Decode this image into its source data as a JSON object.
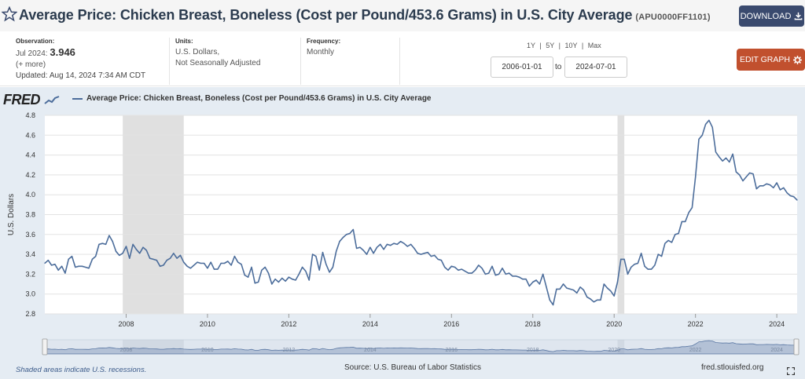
{
  "header": {
    "title": "Average Price: Chicken Breast, Boneless (Cost per Pound/453.6 Grams) in U.S. City Average",
    "series_id": "(APU0000FF1101)",
    "download_label": "DOWNLOAD",
    "download_icon": "download-icon",
    "star_icon": "star-icon"
  },
  "meta": {
    "observation_label": "Observation:",
    "observation_date": "Jul 2024:",
    "observation_value": "3.946",
    "more_link": "(+ more)",
    "updated": "Updated: Aug 14, 2024 7:34 AM CDT",
    "units_label": "Units:",
    "units_line1": "U.S. Dollars,",
    "units_line2": "Not Seasonally Adjusted",
    "frequency_label": "Frequency:",
    "frequency_value": "Monthly"
  },
  "controls": {
    "range_1y": "1Y",
    "range_5y": "5Y",
    "range_10y": "10Y",
    "range_max": "Max",
    "separator": "|",
    "start_date": "2006-01-01",
    "to_label": "to",
    "end_date": "2024-07-01",
    "edit_label": "EDIT GRAPH",
    "edit_icon": "gear-icon"
  },
  "footer": {
    "recession_note": "Shaded areas indicate U.S. recessions.",
    "source": "Source: U.S. Bureau of Labor Statistics",
    "site": "fred.stlouisfed.org",
    "expand_icon": "fullscreen-icon"
  },
  "colors": {
    "series_line": "#4c6d9b",
    "recession_shade": "#e0e0e0",
    "chart_background": "#e5ecf3",
    "download_button": "#3a4a6e",
    "edit_button": "#c1502e"
  },
  "chart_data": {
    "type": "line",
    "logo": "FRED",
    "title": "Average Price: Chicken Breast, Boneless (Cost per Pound/453.6 Grams) in U.S. City Average",
    "legend_label": "Average Price: Chicken Breast, Boneless (Cost per Pound/453.6 Grams) in U.S. City Average",
    "legend_placement": "top-left",
    "ylabel": "U.S. Dollars",
    "xlabel": "",
    "ylim": [
      2.8,
      4.8
    ],
    "yticks": [
      "2.8",
      "3.0",
      "3.2",
      "3.4",
      "3.6",
      "3.8",
      "4.0",
      "4.2",
      "4.4",
      "4.6",
      "4.8"
    ],
    "xlim": [
      2006.0,
      2024.5
    ],
    "xticks": [
      {
        "value": 2008,
        "label": "2008"
      },
      {
        "value": 2010,
        "label": "2010"
      },
      {
        "value": 2012,
        "label": "2012"
      },
      {
        "value": 2014,
        "label": "2014"
      },
      {
        "value": 2016,
        "label": "2016"
      },
      {
        "value": 2018,
        "label": "2018"
      },
      {
        "value": 2020,
        "label": "2020"
      },
      {
        "value": 2022,
        "label": "2022"
      },
      {
        "value": 2024,
        "label": "2024"
      }
    ],
    "grid": true,
    "recessions": [
      {
        "start": "2007-12",
        "end": "2009-06"
      },
      {
        "start": "2020-02",
        "end": "2020-04"
      }
    ],
    "series": [
      {
        "name": "APU0000FF1101",
        "points": [
          [
            "2006-01",
            3.31
          ],
          [
            "2006-02",
            3.34
          ],
          [
            "2006-03",
            3.29
          ],
          [
            "2006-04",
            3.3
          ],
          [
            "2006-05",
            3.24
          ],
          [
            "2006-06",
            3.28
          ],
          [
            "2006-07",
            3.21
          ],
          [
            "2006-08",
            3.35
          ],
          [
            "2006-09",
            3.38
          ],
          [
            "2006-10",
            3.27
          ],
          [
            "2006-11",
            3.28
          ],
          [
            "2006-12",
            3.28
          ],
          [
            "2007-01",
            3.27
          ],
          [
            "2007-02",
            3.26
          ],
          [
            "2007-03",
            3.35
          ],
          [
            "2007-04",
            3.38
          ],
          [
            "2007-05",
            3.5
          ],
          [
            "2007-06",
            3.51
          ],
          [
            "2007-07",
            3.5
          ],
          [
            "2007-08",
            3.59
          ],
          [
            "2007-09",
            3.53
          ],
          [
            "2007-10",
            3.43
          ],
          [
            "2007-11",
            3.39
          ],
          [
            "2007-12",
            3.41
          ],
          [
            "2008-01",
            3.48
          ],
          [
            "2008-02",
            3.36
          ],
          [
            "2008-03",
            3.5
          ],
          [
            "2008-04",
            3.45
          ],
          [
            "2008-05",
            3.41
          ],
          [
            "2008-06",
            3.47
          ],
          [
            "2008-07",
            3.44
          ],
          [
            "2008-08",
            3.36
          ],
          [
            "2008-09",
            3.35
          ],
          [
            "2008-10",
            3.34
          ],
          [
            "2008-11",
            3.28
          ],
          [
            "2008-12",
            3.29
          ],
          [
            "2009-01",
            3.34
          ],
          [
            "2009-02",
            3.36
          ],
          [
            "2009-03",
            3.41
          ],
          [
            "2009-04",
            3.36
          ],
          [
            "2009-05",
            3.39
          ],
          [
            "2009-06",
            3.32
          ],
          [
            "2009-07",
            3.28
          ],
          [
            "2009-08",
            3.26
          ],
          [
            "2009-09",
            3.29
          ],
          [
            "2009-10",
            3.32
          ],
          [
            "2009-11",
            3.31
          ],
          [
            "2009-12",
            3.31
          ],
          [
            "2010-01",
            3.26
          ],
          [
            "2010-02",
            3.32
          ],
          [
            "2010-03",
            3.25
          ],
          [
            "2010-04",
            3.25
          ],
          [
            "2010-05",
            3.31
          ],
          [
            "2010-06",
            3.31
          ],
          [
            "2010-07",
            3.33
          ],
          [
            "2010-08",
            3.29
          ],
          [
            "2010-09",
            3.38
          ],
          [
            "2010-10",
            3.32
          ],
          [
            "2010-11",
            3.3
          ],
          [
            "2010-12",
            3.19
          ],
          [
            "2011-01",
            3.17
          ],
          [
            "2011-02",
            3.27
          ],
          [
            "2011-03",
            3.11
          ],
          [
            "2011-04",
            3.12
          ],
          [
            "2011-05",
            3.24
          ],
          [
            "2011-06",
            3.27
          ],
          [
            "2011-07",
            3.21
          ],
          [
            "2011-08",
            3.1
          ],
          [
            "2011-09",
            3.15
          ],
          [
            "2011-10",
            3.12
          ],
          [
            "2011-11",
            3.16
          ],
          [
            "2011-12",
            3.13
          ],
          [
            "2012-01",
            3.17
          ],
          [
            "2012-02",
            3.15
          ],
          [
            "2012-03",
            3.14
          ],
          [
            "2012-04",
            3.2
          ],
          [
            "2012-05",
            3.27
          ],
          [
            "2012-06",
            3.23
          ],
          [
            "2012-07",
            3.14
          ],
          [
            "2012-08",
            3.4
          ],
          [
            "2012-09",
            3.38
          ],
          [
            "2012-10",
            3.24
          ],
          [
            "2012-11",
            3.42
          ],
          [
            "2012-12",
            3.3
          ],
          [
            "2013-01",
            3.22
          ],
          [
            "2013-02",
            3.27
          ],
          [
            "2013-03",
            3.43
          ],
          [
            "2013-04",
            3.53
          ],
          [
            "2013-05",
            3.57
          ],
          [
            "2013-06",
            3.6
          ],
          [
            "2013-07",
            3.61
          ],
          [
            "2013-08",
            3.65
          ],
          [
            "2013-09",
            3.46
          ],
          [
            "2013-10",
            3.47
          ],
          [
            "2013-11",
            3.44
          ],
          [
            "2013-12",
            3.4
          ],
          [
            "2014-01",
            3.47
          ],
          [
            "2014-02",
            3.41
          ],
          [
            "2014-03",
            3.47
          ],
          [
            "2014-04",
            3.5
          ],
          [
            "2014-05",
            3.45
          ],
          [
            "2014-06",
            3.5
          ],
          [
            "2014-07",
            3.49
          ],
          [
            "2014-08",
            3.51
          ],
          [
            "2014-09",
            3.5
          ],
          [
            "2014-10",
            3.53
          ],
          [
            "2014-11",
            3.51
          ],
          [
            "2014-12",
            3.48
          ],
          [
            "2015-01",
            3.5
          ],
          [
            "2015-02",
            3.46
          ],
          [
            "2015-03",
            3.41
          ],
          [
            "2015-04",
            3.4
          ],
          [
            "2015-05",
            3.41
          ],
          [
            "2015-06",
            3.42
          ],
          [
            "2015-07",
            3.38
          ],
          [
            "2015-08",
            3.39
          ],
          [
            "2015-09",
            3.35
          ],
          [
            "2015-10",
            3.34
          ],
          [
            "2015-11",
            3.27
          ],
          [
            "2015-12",
            3.24
          ],
          [
            "2016-01",
            3.28
          ],
          [
            "2016-02",
            3.27
          ],
          [
            "2016-03",
            3.24
          ],
          [
            "2016-04",
            3.25
          ],
          [
            "2016-05",
            3.23
          ],
          [
            "2016-06",
            3.21
          ],
          [
            "2016-07",
            3.21
          ],
          [
            "2016-08",
            3.24
          ],
          [
            "2016-09",
            3.29
          ],
          [
            "2016-10",
            3.26
          ],
          [
            "2016-11",
            3.2
          ],
          [
            "2016-12",
            3.21
          ],
          [
            "2017-01",
            3.28
          ],
          [
            "2017-02",
            3.19
          ],
          [
            "2017-03",
            3.2
          ],
          [
            "2017-04",
            3.26
          ],
          [
            "2017-05",
            3.2
          ],
          [
            "2017-06",
            3.21
          ],
          [
            "2017-07",
            3.18
          ],
          [
            "2017-08",
            3.18
          ],
          [
            "2017-09",
            3.17
          ],
          [
            "2017-10",
            3.15
          ],
          [
            "2017-11",
            3.15
          ],
          [
            "2017-12",
            3.08
          ],
          [
            "2018-01",
            3.12
          ],
          [
            "2018-02",
            3.14
          ],
          [
            "2018-03",
            3.1
          ],
          [
            "2018-04",
            3.2
          ],
          [
            "2018-05",
            3.07
          ],
          [
            "2018-06",
            2.94
          ],
          [
            "2018-07",
            2.89
          ],
          [
            "2018-08",
            3.05
          ],
          [
            "2018-09",
            3.05
          ],
          [
            "2018-10",
            3.1
          ],
          [
            "2018-11",
            3.06
          ],
          [
            "2018-12",
            3.05
          ],
          [
            "2019-01",
            3.04
          ],
          [
            "2019-02",
            3.01
          ],
          [
            "2019-03",
            3.07
          ],
          [
            "2019-04",
            3.04
          ],
          [
            "2019-05",
            2.97
          ],
          [
            "2019-06",
            2.95
          ],
          [
            "2019-07",
            2.92
          ],
          [
            "2019-08",
            2.94
          ],
          [
            "2019-09",
            2.94
          ],
          [
            "2019-10",
            3.1
          ],
          [
            "2019-11",
            3.06
          ],
          [
            "2019-12",
            3.03
          ],
          [
            "2020-01",
            2.98
          ],
          [
            "2020-02",
            3.12
          ],
          [
            "2020-03",
            3.35
          ],
          [
            "2020-04",
            3.35
          ],
          [
            "2020-05",
            3.2
          ],
          [
            "2020-06",
            3.27
          ],
          [
            "2020-07",
            3.3
          ],
          [
            "2020-08",
            3.31
          ],
          [
            "2020-09",
            3.41
          ],
          [
            "2020-10",
            3.28
          ],
          [
            "2020-11",
            3.25
          ],
          [
            "2020-12",
            3.25
          ],
          [
            "2021-01",
            3.29
          ],
          [
            "2021-02",
            3.4
          ],
          [
            "2021-03",
            3.38
          ],
          [
            "2021-04",
            3.51
          ],
          [
            "2021-05",
            3.54
          ],
          [
            "2021-06",
            3.52
          ],
          [
            "2021-07",
            3.6
          ],
          [
            "2021-08",
            3.61
          ],
          [
            "2021-09",
            3.73
          ],
          [
            "2021-10",
            3.73
          ],
          [
            "2021-11",
            3.82
          ],
          [
            "2021-12",
            3.87
          ],
          [
            "2022-01",
            4.18
          ],
          [
            "2022-02",
            4.56
          ],
          [
            "2022-03",
            4.6
          ],
          [
            "2022-04",
            4.71
          ],
          [
            "2022-05",
            4.75
          ],
          [
            "2022-06",
            4.68
          ],
          [
            "2022-07",
            4.43
          ],
          [
            "2022-08",
            4.38
          ],
          [
            "2022-09",
            4.34
          ],
          [
            "2022-10",
            4.37
          ],
          [
            "2022-11",
            4.33
          ],
          [
            "2022-12",
            4.41
          ],
          [
            "2023-01",
            4.23
          ],
          [
            "2023-02",
            4.2
          ],
          [
            "2023-03",
            4.14
          ],
          [
            "2023-04",
            4.18
          ],
          [
            "2023-05",
            4.22
          ],
          [
            "2023-06",
            4.21
          ],
          [
            "2023-07",
            4.06
          ],
          [
            "2023-08",
            4.09
          ],
          [
            "2023-09",
            4.09
          ],
          [
            "2023-10",
            4.11
          ],
          [
            "2023-11",
            4.1
          ],
          [
            "2023-12",
            4.07
          ],
          [
            "2024-01",
            4.12
          ],
          [
            "2024-02",
            4.05
          ],
          [
            "2024-03",
            4.07
          ],
          [
            "2024-04",
            4.02
          ],
          [
            "2024-05",
            3.99
          ],
          [
            "2024-06",
            3.98
          ],
          [
            "2024-07",
            3.946
          ]
        ]
      }
    ],
    "navigator": {
      "xlim": [
        2006.0,
        2024.5
      ],
      "selected": [
        2006.0,
        2024.5
      ]
    }
  }
}
